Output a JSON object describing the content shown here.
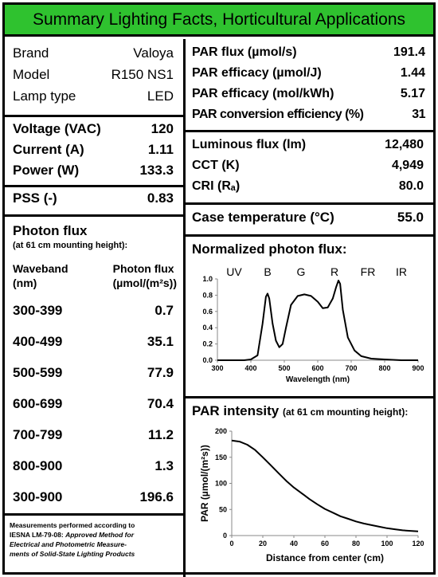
{
  "header": {
    "title": "Summary Lighting Facts, Horticultural Applications"
  },
  "colors": {
    "header_bg": "#2fc22f",
    "border": "#000000"
  },
  "specs": [
    {
      "label": "Brand",
      "value": "Valoya"
    },
    {
      "label": "Model",
      "value": "R150 NS1"
    },
    {
      "label": "Lamp type",
      "value": "LED"
    }
  ],
  "electrical": [
    {
      "label": "Voltage (VAC)",
      "value": "120"
    },
    {
      "label": "Current (A)",
      "value": "1.11"
    },
    {
      "label": "Power (W)",
      "value": "133.3"
    }
  ],
  "pss": {
    "label": "PSS (-)",
    "value": "0.83"
  },
  "photon_flux": {
    "title": "Photon flux",
    "subtitle": "(at 61 cm mounting height):",
    "col1": [
      "Waveband",
      "(nm)"
    ],
    "col2": [
      "Photon flux",
      "(µmol/(m²s))"
    ],
    "rows": [
      {
        "band": "300-399",
        "value": "0.7"
      },
      {
        "band": "400-499",
        "value": "35.1"
      },
      {
        "band": "500-599",
        "value": "77.9"
      },
      {
        "band": "600-699",
        "value": "70.4"
      },
      {
        "band": "700-799",
        "value": "11.2"
      },
      {
        "band": "800-900",
        "value": "1.3"
      },
      {
        "band": "300-900",
        "value": "196.6"
      }
    ]
  },
  "footnote": {
    "line1": "Measurements performed according to",
    "line2": "IESNA LM-79-08: ",
    "line2_italic": "Approved Method for",
    "line3": "Electrical and Photometric Measure-",
    "line4": "ments of Solid-State Lighting Products"
  },
  "par": [
    {
      "label": "PAR flux (µmol/s)",
      "value": "191.4"
    },
    {
      "label": "PAR efficacy (µmol/J)",
      "value": "1.44"
    },
    {
      "label": "PAR efficacy (mol/kWh)",
      "value": "5.17"
    },
    {
      "label": "PAR conversion efficiency (%)",
      "value": "31"
    }
  ],
  "photometric": [
    {
      "label": "Luminous flux (lm)",
      "value": "12,480"
    },
    {
      "label": "CCT (K)",
      "value": "4,949"
    },
    {
      "label": "CRI (Rₐ)",
      "value": "80.0"
    }
  ],
  "case_temp": {
    "label": "Case temperature (°C)",
    "value": "55.0"
  },
  "chart_data": [
    {
      "type": "line",
      "title": "Normalized photon flux:",
      "xlabel": "Wavelength (nm)",
      "ylabel": "",
      "xlim": [
        300,
        900
      ],
      "ylim": [
        0,
        1.0
      ],
      "xticks": [
        "300",
        "400",
        "500",
        "600",
        "700",
        "800",
        "900"
      ],
      "yticks": [
        "0.0",
        "0.2",
        "0.4",
        "0.6",
        "0.8",
        "1.0"
      ],
      "band_labels": [
        {
          "text": "UV",
          "x": 350
        },
        {
          "text": "B",
          "x": 450
        },
        {
          "text": "G",
          "x": 550
        },
        {
          "text": "R",
          "x": 650
        },
        {
          "text": "FR",
          "x": 750
        },
        {
          "text": "IR",
          "x": 850
        }
      ],
      "x": [
        300,
        380,
        400,
        420,
        435,
        445,
        450,
        455,
        465,
        475,
        485,
        495,
        505,
        520,
        540,
        560,
        580,
        600,
        615,
        630,
        645,
        655,
        662,
        667,
        675,
        690,
        710,
        730,
        760,
        800,
        850,
        900
      ],
      "y": [
        0,
        0,
        0.01,
        0.06,
        0.45,
        0.78,
        0.82,
        0.76,
        0.45,
        0.24,
        0.16,
        0.2,
        0.4,
        0.68,
        0.79,
        0.81,
        0.79,
        0.72,
        0.64,
        0.65,
        0.76,
        0.9,
        0.98,
        0.94,
        0.62,
        0.28,
        0.12,
        0.05,
        0.02,
        0.01,
        0,
        0
      ]
    },
    {
      "type": "line",
      "title": "PAR intensity",
      "subtitle": "(at 61 cm mounting height):",
      "xlabel": "Distance from center (cm)",
      "ylabel": "PAR (µmol/(m²s))",
      "xlim": [
        0,
        120
      ],
      "ylim": [
        0,
        200
      ],
      "xticks": [
        "0",
        "20",
        "40",
        "60",
        "80",
        "100",
        "120"
      ],
      "yticks": [
        "0",
        "50",
        "100",
        "150",
        "200"
      ],
      "x": [
        0,
        5,
        10,
        15,
        20,
        25,
        30,
        35,
        40,
        45,
        50,
        55,
        60,
        65,
        70,
        75,
        80,
        85,
        90,
        95,
        100,
        105,
        110,
        115,
        120
      ],
      "y": [
        182,
        180,
        174,
        164,
        150,
        135,
        120,
        105,
        92,
        81,
        70,
        60,
        51,
        44,
        37,
        32,
        27,
        23,
        20,
        17,
        14,
        12,
        10,
        9,
        8
      ]
    }
  ]
}
